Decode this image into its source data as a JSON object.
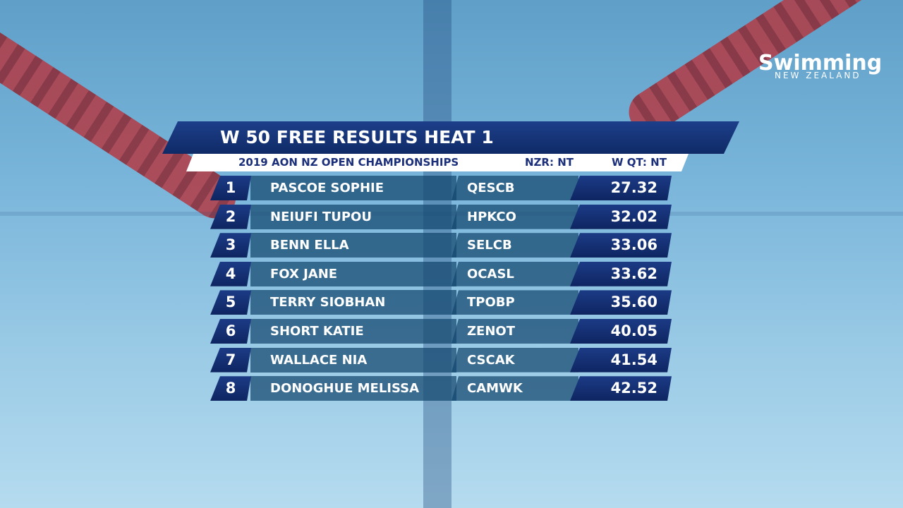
{
  "logo": {
    "name": "Swimming",
    "subtitle": "NEW ZEALAND"
  },
  "header": {
    "title": "W 50 FREE RESULTS HEAT 1",
    "event": "2019 AON NZ OPEN CHAMPIONSHIPS",
    "record": "NZR: NT",
    "qualifying": "W QT: NT"
  },
  "table": {
    "rows": [
      [
        1,
        "PASCOE SOPHIE",
        "QESCB",
        "27.32"
      ],
      [
        2,
        "NEIUFI TUPOU",
        "HPKCO",
        "32.02"
      ],
      [
        3,
        "BENN ELLA",
        "SELCB",
        "33.06"
      ],
      [
        4,
        "FOX JANE",
        "OCASL",
        "33.62"
      ],
      [
        5,
        "TERRY SIOBHAN",
        "TPOBP",
        "35.60"
      ],
      [
        6,
        "SHORT KATIE",
        "ZENOT",
        "40.05"
      ],
      [
        7,
        "WALLACE NIA",
        "CSCAK",
        "41.54"
      ],
      [
        8,
        "DONOGHUE MELISSA",
        "CAMWK",
        "42.52"
      ]
    ]
  }
}
